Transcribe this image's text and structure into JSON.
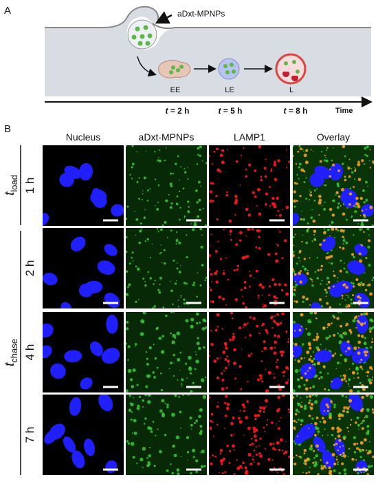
{
  "panel_a": {
    "label": "A",
    "nanoparticle_label": "aDxt-MPNPs",
    "compartments": [
      "EE",
      "LE",
      "L"
    ],
    "timepoints": [
      {
        "variable": "t",
        "rest": " = 2 h"
      },
      {
        "variable": "t",
        "rest": " = 5 h"
      },
      {
        "variable": "t",
        "rest": " = 8 h"
      }
    ],
    "axis_label": "Time"
  },
  "panel_b": {
    "label": "B",
    "columns": [
      "Nucleus",
      "aDxt-MPNPs",
      "LAMP1",
      "Overlay"
    ],
    "groups": [
      {
        "symbol": "t",
        "subscript": "load"
      },
      {
        "symbol": "t",
        "subscript": "chase"
      }
    ],
    "rows": [
      "1 h",
      "2 h",
      "4 h",
      "7 h"
    ]
  }
}
